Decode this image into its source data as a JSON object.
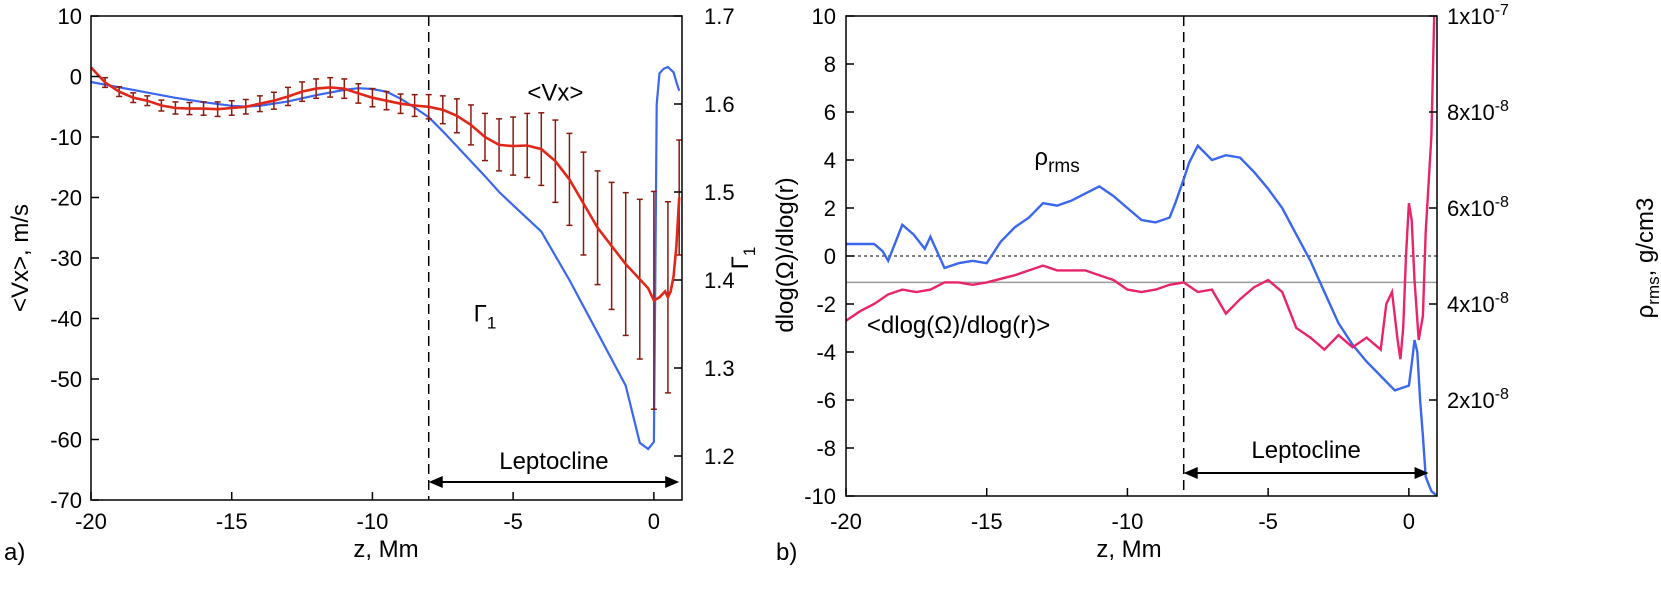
{
  "chart_data": [
    {
      "type": "line",
      "panel_label": "a)",
      "xlabel": "z, Mm",
      "ylabel": "<Vx>, m/s",
      "y2label_main": "Γ",
      "y2label_sub": "1",
      "xlim": [
        -20,
        1
      ],
      "ylim": [
        -70,
        10
      ],
      "y2lim": [
        1.15,
        1.7
      ],
      "xticks": [
        -20,
        -15,
        -10,
        -5,
        0
      ],
      "yticks": [
        10,
        0,
        -10,
        -20,
        -30,
        -40,
        -50,
        -60,
        -70
      ],
      "y2ticks": [
        1.7,
        1.6,
        1.5,
        1.4,
        1.3,
        1.2
      ],
      "dashed_x": -8,
      "region": {
        "label": "Leptocline",
        "from": -8,
        "to": 0.9
      },
      "annotations": [
        {
          "main": "<Vx>",
          "sub": "",
          "at": [
            -3.5,
            -4
          ]
        },
        {
          "main": "Γ",
          "sub": "1",
          "at": [
            -6,
            -40.5
          ]
        }
      ],
      "series": [
        {
          "name": "<Vx>",
          "color": "#e0281a",
          "axis": "left",
          "x": [
            -20,
            -19.5,
            -19,
            -18.5,
            -18,
            -17.5,
            -17,
            -16.5,
            -16,
            -15.5,
            -15,
            -14.5,
            -14,
            -13.5,
            -13,
            -12.5,
            -12,
            -11.5,
            -11,
            -10.5,
            -10,
            -9.5,
            -9,
            -8.5,
            -8,
            -7.5,
            -7,
            -6.5,
            -6,
            -5.5,
            -5,
            -4.5,
            -4,
            -3.5,
            -3,
            -2.5,
            -2,
            -1.5,
            -1,
            -0.5,
            -0.2,
            0,
            0.2,
            0.4,
            0.5,
            0.6,
            0.7,
            0.8,
            0.9
          ],
          "y": [
            1.5,
            -1,
            -2.5,
            -3.5,
            -4,
            -4.8,
            -5.2,
            -5.3,
            -5.3,
            -5.4,
            -5.2,
            -5.0,
            -4.5,
            -4,
            -3.3,
            -2.5,
            -2,
            -1.8,
            -2,
            -2.8,
            -3.5,
            -4,
            -4.5,
            -4.8,
            -5,
            -5.5,
            -6.5,
            -8,
            -10,
            -11.3,
            -11.5,
            -11.4,
            -12,
            -14,
            -17,
            -21,
            -25,
            -28,
            -31,
            -33.5,
            -35,
            -37,
            -36.5,
            -35.5,
            -36.5,
            -35.5,
            -33,
            -28,
            -20
          ]
        },
        {
          "name": "Γ1",
          "color": "#3b66ee",
          "axis": "right",
          "x": [
            -20,
            -19,
            -18,
            -17,
            -16,
            -15,
            -14.5,
            -14,
            -13,
            -12,
            -11,
            -10.5,
            -10,
            -9.5,
            -9,
            -8.5,
            -8,
            -7.5,
            -7,
            -6.5,
            -6,
            -5.5,
            -5,
            -4,
            -3,
            -2,
            -1,
            -0.5,
            -0.2,
            0,
            0.05,
            0.1,
            0.2,
            0.35,
            0.5,
            0.7,
            0.8,
            0.9
          ],
          "y": [
            1.625,
            1.619,
            1.613,
            1.607,
            1.602,
            1.598,
            1.597,
            1.598,
            1.603,
            1.61,
            1.616,
            1.618,
            1.617,
            1.614,
            1.606,
            1.596,
            1.585,
            1.569,
            1.552,
            1.535,
            1.518,
            1.5,
            1.485,
            1.455,
            1.4,
            1.34,
            1.28,
            1.215,
            1.208,
            1.216,
            1.4,
            1.6,
            1.635,
            1.64,
            1.642,
            1.636,
            1.625,
            1.615
          ]
        }
      ],
      "error_bars": {
        "x": [
          -19.5,
          -19,
          -18.5,
          -18,
          -17.5,
          -17,
          -16.5,
          -16,
          -15.5,
          -15,
          -14.5,
          -14,
          -13.5,
          -13,
          -12.5,
          -12,
          -11.5,
          -11,
          -10.5,
          -10,
          -9.5,
          -9,
          -8.5,
          -8,
          -7.5,
          -7,
          -6.5,
          -6,
          -5.5,
          -5,
          -4.5,
          -4,
          -3.5,
          -3,
          -2.5,
          -2,
          -1.5,
          -1,
          -0.5,
          0,
          0.5,
          0.9
        ],
        "y": [
          -1,
          -2.5,
          -3.5,
          -4,
          -4.8,
          -5.2,
          -5.3,
          -5.3,
          -5.4,
          -5.2,
          -5.0,
          -4.5,
          -4,
          -3.3,
          -2.5,
          -2,
          -1.8,
          -2,
          -2.8,
          -3.5,
          -4,
          -4.5,
          -4.8,
          -5,
          -5.5,
          -6.5,
          -8,
          -10,
          -11.3,
          -11.5,
          -11.4,
          -12,
          -14,
          -17,
          -21,
          -25,
          -28,
          -31,
          -33.5,
          -37,
          -36.5,
          -20
        ],
        "err": [
          0.8,
          0.8,
          0.8,
          0.8,
          0.9,
          1.0,
          1.0,
          1.1,
          1.2,
          1.2,
          1.2,
          1.3,
          1.4,
          1.5,
          1.6,
          1.6,
          1.6,
          1.6,
          1.6,
          1.5,
          1.5,
          1.6,
          1.8,
          2.0,
          2.3,
          2.8,
          3.3,
          3.9,
          4.3,
          4.8,
          5.3,
          6.0,
          6.8,
          7.6,
          8.5,
          9.4,
          10.5,
          11.8,
          13.2,
          18,
          15.8,
          9.5
        ]
      }
    },
    {
      "type": "line",
      "panel_label": "b)",
      "xlabel": "z, Mm",
      "ylabel": "dlog(Ω)/dlog(r)",
      "y2label_main": "ρ",
      "y2label_sub": "rms",
      "y2label_tail": ", g/cm3",
      "xlim": [
        -20,
        1
      ],
      "ylim": [
        -10,
        10
      ],
      "y2lim": [
        0,
        1e-07
      ],
      "xticks": [
        -20,
        -15,
        -10,
        -5,
        0
      ],
      "yticks": [
        10,
        8,
        6,
        4,
        2,
        0,
        -2,
        -4,
        -6,
        -8,
        -10
      ],
      "y2ticks": [
        {
          "value": 1e-07,
          "label": "1x10",
          "exp": "-7"
        },
        {
          "value": 8e-08,
          "label": "8x10",
          "exp": "-8"
        },
        {
          "value": 6e-08,
          "label": "6x10",
          "exp": "-8"
        },
        {
          "value": 4e-08,
          "label": "4x10",
          "exp": "-8"
        },
        {
          "value": 2e-08,
          "label": "2x10",
          "exp": "-8"
        }
      ],
      "dashed_x": -8,
      "hline_dotted": 0,
      "hline_gray": -1.1,
      "region": {
        "label": "Leptocline",
        "from": -8,
        "to": 0.7
      },
      "annotations": [
        {
          "main": "ρ",
          "sub": "rms",
          "at": [
            -12.5,
            3.8
          ]
        },
        {
          "main": "<dlog(Ω)/dlog(r)>",
          "sub": "",
          "at": [
            -16,
            -3.2
          ]
        }
      ],
      "series": [
        {
          "name": "<dlog(Ω)/dlog(r)>",
          "color": "#e8246a",
          "axis": "left",
          "x": [
            -20,
            -19.5,
            -19,
            -18.5,
            -18,
            -17.5,
            -17,
            -16.5,
            -16,
            -15.5,
            -15,
            -14,
            -13.5,
            -13,
            -12.5,
            -12,
            -11.5,
            -11,
            -10.5,
            -10,
            -9.5,
            -9,
            -8.5,
            -8,
            -7.5,
            -7,
            -6.5,
            -6,
            -5.5,
            -5,
            -4.5,
            -4,
            -3.5,
            -3,
            -2.5,
            -2,
            -1.5,
            -1,
            -0.8,
            -0.6,
            -0.4,
            -0.3,
            -0.2,
            -0.1,
            0,
            0.1,
            0.2,
            0.35,
            0.5,
            0.6,
            0.8,
            0.9
          ],
          "y": [
            -2.7,
            -2.3,
            -2.0,
            -1.6,
            -1.4,
            -1.5,
            -1.4,
            -1.1,
            -1.1,
            -1.2,
            -1.1,
            -0.8,
            -0.6,
            -0.4,
            -0.6,
            -0.6,
            -0.6,
            -0.8,
            -1.0,
            -1.4,
            -1.5,
            -1.4,
            -1.2,
            -1.1,
            -1.5,
            -1.4,
            -2.4,
            -1.8,
            -1.3,
            -1.0,
            -1.5,
            -3.0,
            -3.4,
            -3.9,
            -3.3,
            -3.8,
            -3.4,
            -3.9,
            -2.0,
            -1.5,
            -3.5,
            -4.3,
            -3.0,
            0,
            2.2,
            1.5,
            -1.0,
            -3.5,
            -2.5,
            1.0,
            5,
            10
          ]
        },
        {
          "name": "ρrms",
          "color": "#3b66ee",
          "axis": "left",
          "x": [
            -20,
            -19.5,
            -19,
            -18.7,
            -18.5,
            -18,
            -17.6,
            -17.2,
            -17,
            -16.5,
            -16,
            -15.5,
            -15,
            -14.5,
            -14,
            -13.5,
            -13,
            -12.5,
            -12,
            -11.5,
            -11,
            -10.5,
            -10,
            -9.5,
            -9,
            -8.5,
            -8.3,
            -8,
            -7.8,
            -7.5,
            -7,
            -6.5,
            -6,
            -5.5,
            -5,
            -4.5,
            -4,
            -3.5,
            -3,
            -2.5,
            -2,
            -1.5,
            -1,
            -0.5,
            0,
            0.1,
            0.2,
            0.3,
            0.4,
            0.5,
            0.6,
            0.8,
            1.0
          ],
          "y": [
            0.5,
            0.5,
            0.5,
            0.2,
            -0.2,
            1.3,
            0.9,
            0.3,
            0.8,
            -0.5,
            -0.3,
            -0.2,
            -0.3,
            0.6,
            1.2,
            1.6,
            2.2,
            2.1,
            2.3,
            2.6,
            2.9,
            2.5,
            2.0,
            1.5,
            1.4,
            1.6,
            2.2,
            3.2,
            3.9,
            4.6,
            4.0,
            4.2,
            4.1,
            3.5,
            2.8,
            2.0,
            0.9,
            -0.2,
            -1.5,
            -2.8,
            -3.7,
            -4.4,
            -5.0,
            -5.6,
            -5.4,
            -4.5,
            -3.5,
            -4.0,
            -6.0,
            -7.5,
            -9.2,
            -9.8,
            -10
          ]
        }
      ]
    }
  ]
}
